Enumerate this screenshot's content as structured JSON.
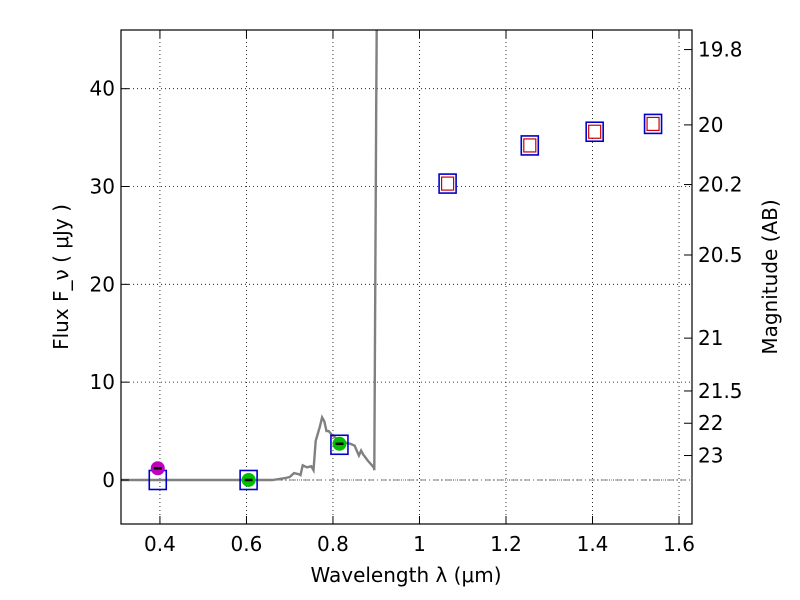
{
  "chart_data": {
    "type": "scatter",
    "xlabel": "Wavelength  λ (μm)",
    "ylabel": "Flux  F_ν  ( μJy )",
    "ylabel_right": "Magnitude (AB)",
    "xlim": [
      0.31,
      1.63
    ],
    "ylim": [
      -4.5,
      46
    ],
    "grid": true,
    "x_ticks": [
      {
        "value": 0.4,
        "label": "0.4"
      },
      {
        "value": 0.6,
        "label": "0.6"
      },
      {
        "value": 0.8,
        "label": "0.8"
      },
      {
        "value": 1.0,
        "label": "1"
      },
      {
        "value": 1.2,
        "label": "1.2"
      },
      {
        "value": 1.4,
        "label": "1.4"
      },
      {
        "value": 1.6,
        "label": "1.6"
      }
    ],
    "y_ticks": [
      {
        "value": 0,
        "label": "0"
      },
      {
        "value": 10,
        "label": "10"
      },
      {
        "value": 20,
        "label": "20"
      },
      {
        "value": 30,
        "label": "30"
      },
      {
        "value": 40,
        "label": "40"
      }
    ],
    "mag_ticks": [
      {
        "label": "19.8",
        "flux": 44.0
      },
      {
        "label": "20",
        "flux": 36.3
      },
      {
        "label": "20.2",
        "flux": 30.2
      },
      {
        "label": "20.5",
        "flux": 23.0
      },
      {
        "label": "21",
        "flux": 14.5
      },
      {
        "label": "21.5",
        "flux": 9.1
      },
      {
        "label": "22",
        "flux": 5.8
      },
      {
        "label": "23",
        "flux": 2.5
      }
    ],
    "zero_line": 0,
    "model_spectrum": {
      "x": [
        0.31,
        0.4,
        0.5,
        0.6,
        0.66,
        0.69,
        0.7,
        0.71,
        0.72,
        0.725,
        0.73,
        0.74,
        0.75,
        0.755,
        0.76,
        0.77,
        0.775,
        0.78,
        0.785,
        0.79,
        0.8,
        0.81,
        0.82,
        0.83,
        0.84,
        0.85,
        0.86,
        0.865,
        0.87,
        0.88,
        0.89,
        0.895,
        0.8955,
        0.9,
        0.901
      ],
      "y": [
        0.0,
        0.0,
        0.0,
        0.0,
        0.0,
        0.2,
        0.3,
        0.7,
        0.6,
        0.5,
        1.5,
        1.3,
        1.4,
        1.0,
        4.0,
        5.5,
        6.4,
        6.0,
        5.0,
        5.0,
        4.5,
        4.2,
        3.8,
        3.8,
        3.7,
        3.5,
        2.5,
        3.0,
        2.6,
        2.0,
        1.5,
        1.2,
        1.0,
        38.0,
        46.0
      ]
    },
    "series": [
      {
        "name": "model-band-flux",
        "marker": "square",
        "edgecolor": "#0000cc",
        "x": [
          0.395,
          0.605,
          0.815,
          1.065,
          1.255,
          1.405,
          1.54
        ],
        "y": [
          0.0,
          0.0,
          3.6,
          30.3,
          34.2,
          35.6,
          36.4
        ]
      },
      {
        "name": "observed-upper-limit",
        "marker": "small-square",
        "edgecolor": "#cc0000",
        "x": [
          1.065,
          1.255,
          1.405,
          1.54
        ],
        "y": [
          30.3,
          34.2,
          35.6,
          36.4
        ]
      },
      {
        "name": "observed-detection",
        "marker": "circle",
        "x": [
          0.395,
          0.605,
          0.815
        ],
        "y": [
          1.2,
          0.0,
          3.7
        ],
        "colors": [
          "#bf00bf",
          "#00bf00",
          "#00bf00"
        ]
      }
    ]
  }
}
